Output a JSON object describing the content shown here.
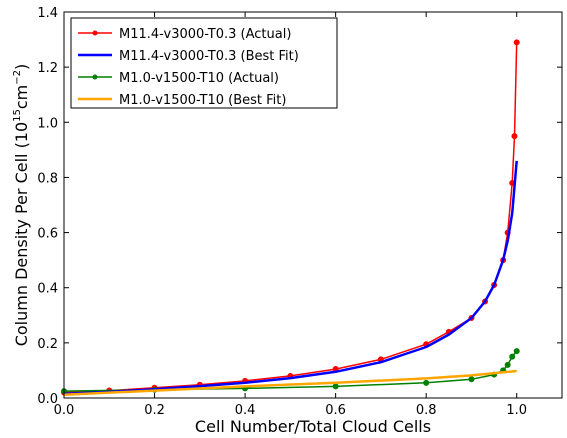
{
  "chart_data": {
    "type": "line",
    "xlabel": "Cell Number/Total Cloud Cells",
    "ylabel": "Column Density Per Cell (10",
    "ylabel_sup1": "15",
    "ylabel_mid": "cm",
    "ylabel_sup2": "−2",
    "ylabel_end": ")",
    "xlim": [
      0.0,
      1.1
    ],
    "ylim": [
      0.0,
      1.4
    ],
    "xticks": [
      {
        "value": 0.0,
        "label": "0.0"
      },
      {
        "value": 0.2,
        "label": "0.2"
      },
      {
        "value": 0.4,
        "label": "0.4"
      },
      {
        "value": 0.6,
        "label": "0.6"
      },
      {
        "value": 0.8,
        "label": "0.8"
      },
      {
        "value": 1.0,
        "label": "1.0"
      }
    ],
    "yticks": [
      {
        "value": 0.0,
        "label": "0.0"
      },
      {
        "value": 0.2,
        "label": "0.2"
      },
      {
        "value": 0.4,
        "label": "0.4"
      },
      {
        "value": 0.6,
        "label": "0.6"
      },
      {
        "value": 0.8,
        "label": "0.8"
      },
      {
        "value": 1.0,
        "label": "1.0"
      },
      {
        "value": 1.2,
        "label": "1.2"
      },
      {
        "value": 1.4,
        "label": "1.4"
      }
    ],
    "grid": false,
    "legend_position": "top-left",
    "series": [
      {
        "name": "M11.4-v3000-T0.3 (Actual)",
        "color": "#ff0000",
        "style": "line-markers",
        "x": [
          0.0,
          0.1,
          0.2,
          0.3,
          0.4,
          0.5,
          0.6,
          0.7,
          0.8,
          0.85,
          0.9,
          0.93,
          0.95,
          0.97,
          0.98,
          0.99,
          0.995,
          1.0
        ],
        "y": [
          0.02,
          0.027,
          0.037,
          0.048,
          0.062,
          0.08,
          0.105,
          0.14,
          0.195,
          0.24,
          0.29,
          0.35,
          0.41,
          0.5,
          0.6,
          0.78,
          0.95,
          1.29
        ]
      },
      {
        "name": "M11.4-v3000-T0.3 (Best Fit)",
        "color": "#0000ff",
        "style": "line",
        "x": [
          0.0,
          0.1,
          0.2,
          0.3,
          0.4,
          0.5,
          0.6,
          0.7,
          0.8,
          0.85,
          0.9,
          0.93,
          0.95,
          0.97,
          0.98,
          0.99,
          1.0
        ],
        "y": [
          0.015,
          0.022,
          0.032,
          0.043,
          0.055,
          0.072,
          0.095,
          0.13,
          0.185,
          0.23,
          0.29,
          0.35,
          0.41,
          0.5,
          0.57,
          0.67,
          0.86
        ]
      },
      {
        "name": "M1.0-v1500-T10 (Actual)",
        "color": "#008000",
        "style": "line-markers",
        "x": [
          0.0,
          0.2,
          0.4,
          0.6,
          0.8,
          0.9,
          0.95,
          0.97,
          0.98,
          0.99,
          1.0
        ],
        "y": [
          0.025,
          0.03,
          0.035,
          0.042,
          0.055,
          0.068,
          0.085,
          0.1,
          0.12,
          0.15,
          0.17
        ]
      },
      {
        "name": "M1.0-v1500-T10 (Best Fit)",
        "color": "#ffa500",
        "style": "line",
        "x": [
          0.0,
          0.2,
          0.4,
          0.6,
          0.8,
          0.9,
          1.0
        ],
        "y": [
          0.012,
          0.027,
          0.042,
          0.055,
          0.071,
          0.082,
          0.098
        ]
      }
    ]
  }
}
